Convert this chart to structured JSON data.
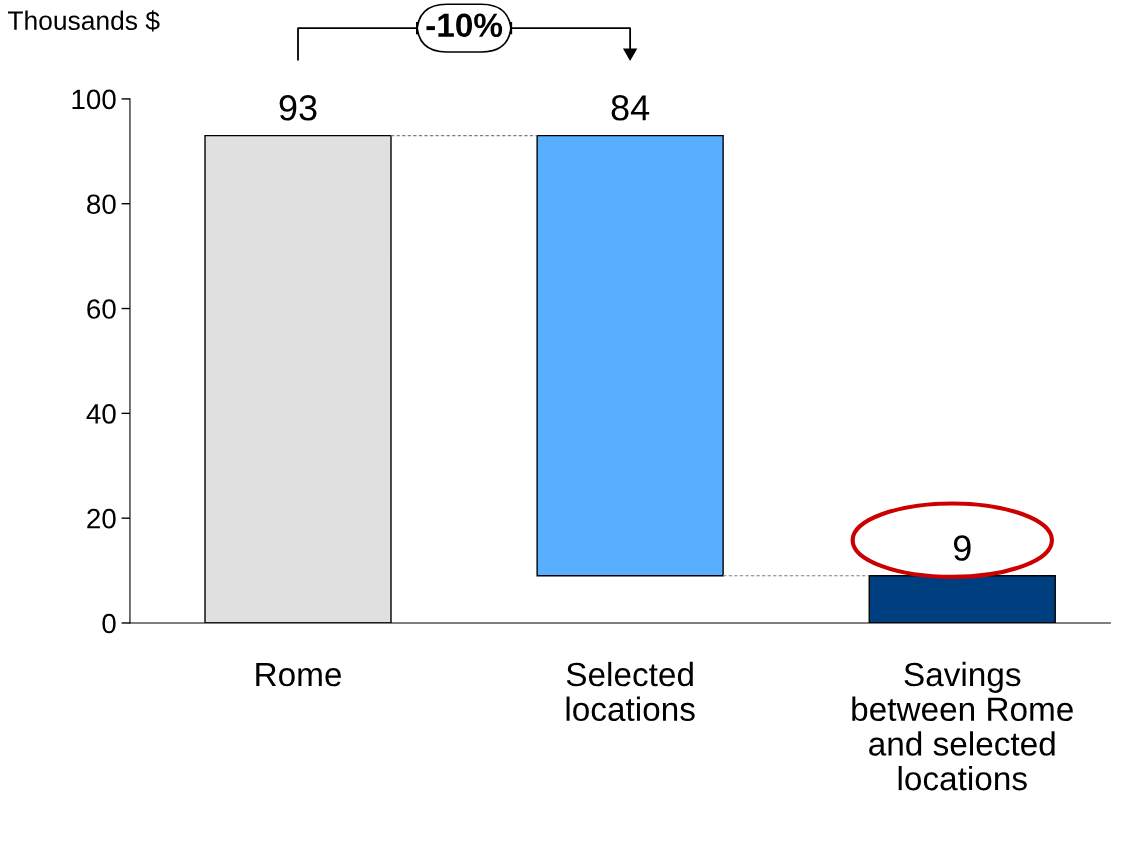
{
  "chart_data": {
    "type": "bar",
    "ylabel": "Thousands $",
    "categories": [
      "Rome",
      "Selected\nlocations",
      "Savings\nbetween Rome\nand selected\nlocations"
    ],
    "values": [
      93,
      84,
      9
    ],
    "base": [
      0,
      9,
      0
    ],
    "colors": [
      "#e0e0e0",
      "#5aaeff",
      "#003f7f"
    ],
    "ylim": [
      0,
      100
    ],
    "yticks": [
      0,
      20,
      40,
      60,
      80,
      100
    ],
    "data_labels": true,
    "grid": false,
    "legend": false,
    "annotations": [
      "-10%"
    ]
  }
}
